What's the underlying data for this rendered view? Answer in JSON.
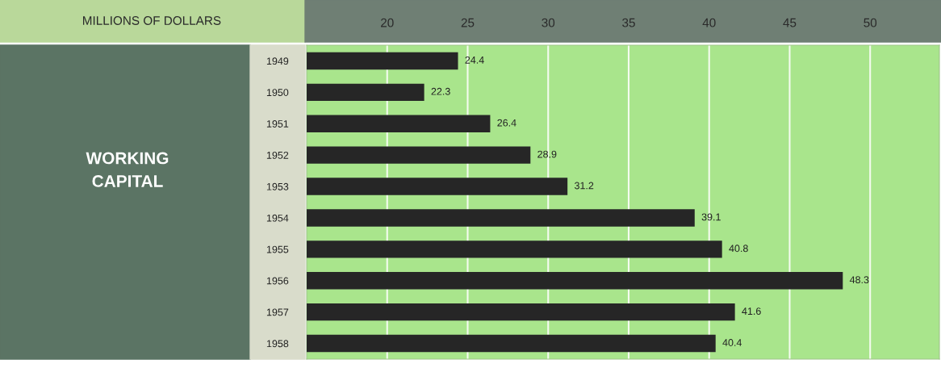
{
  "chart_data": {
    "type": "bar",
    "orientation": "horizontal",
    "xlabel": "MILLIONS OF DOLLARS",
    "annotations": [
      "WORKING\nCAPITAL"
    ],
    "categories": [
      "1949",
      "1950",
      "1951",
      "1952",
      "1953",
      "1954",
      "1955",
      "1956",
      "1957",
      "1958"
    ],
    "values": [
      24.4,
      22.3,
      26.4,
      28.9,
      31.2,
      39.1,
      40.8,
      48.3,
      41.6,
      40.4
    ],
    "color": "#262626",
    "xlim": [
      15,
      54.3
    ],
    "xticks": [
      20,
      25,
      30,
      35,
      40,
      45,
      50
    ],
    "grid": "x",
    "data_labels": true
  }
}
